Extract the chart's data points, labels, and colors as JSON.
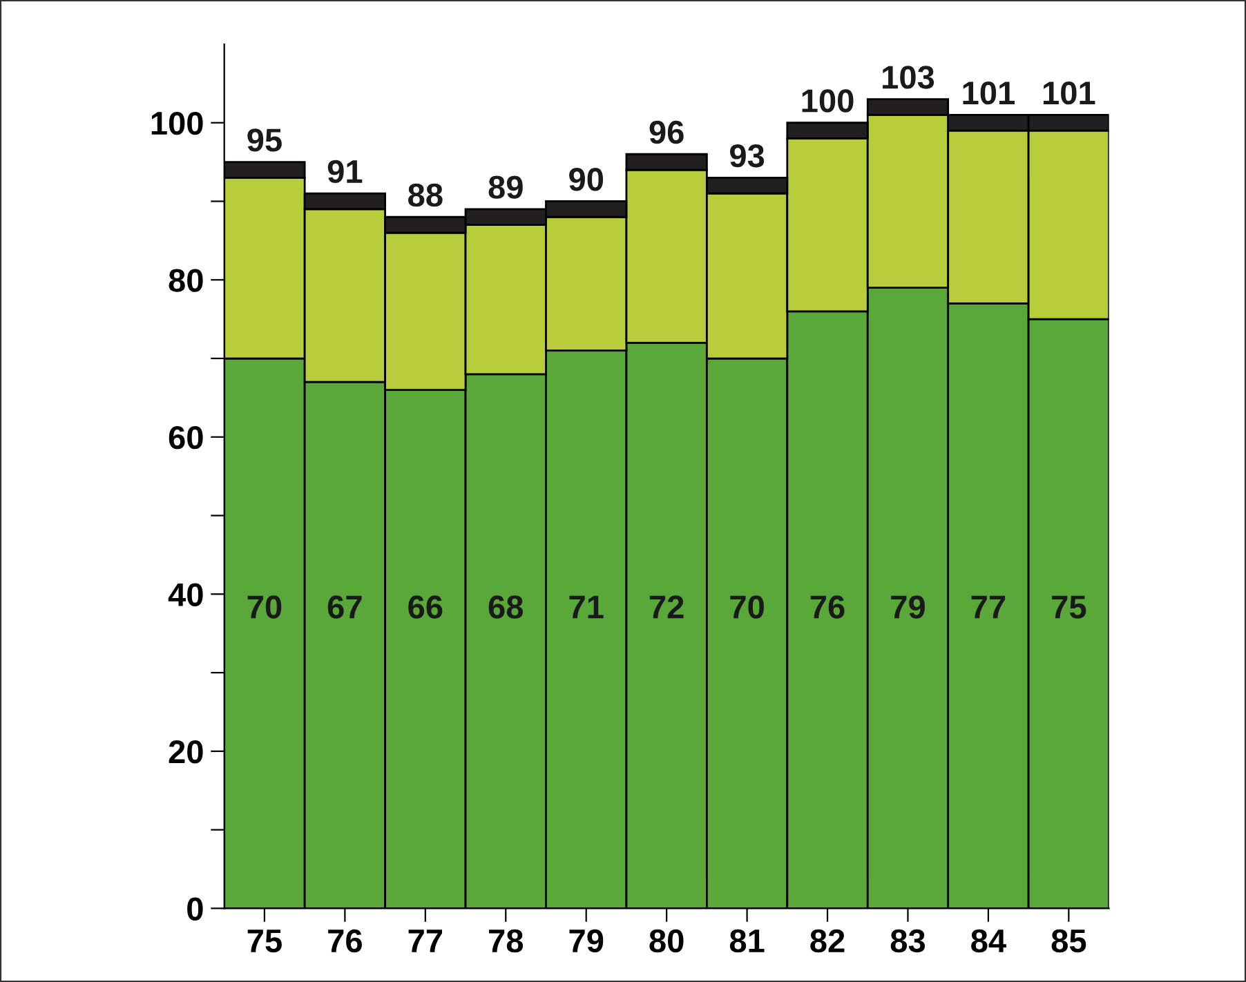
{
  "chart_data": {
    "type": "bar",
    "stacked": true,
    "categories": [
      "75",
      "76",
      "77",
      "78",
      "79",
      "80",
      "81",
      "82",
      "83",
      "84",
      "85"
    ],
    "series": [
      {
        "color": "#5aa83a",
        "values": [
          70,
          67,
          66,
          68,
          71,
          72,
          70,
          76,
          79,
          77,
          75
        ],
        "value_labels": [
          "70",
          "67",
          "66",
          "68",
          "71",
          "72",
          "70",
          "76",
          "79",
          "77",
          "75"
        ]
      },
      {
        "color": "#b8cc3c",
        "values": [
          23,
          22,
          20,
          19,
          17,
          22,
          21,
          22,
          22,
          22,
          24
        ]
      },
      {
        "color": "#231f20",
        "values": [
          2,
          2,
          2,
          2,
          2,
          2,
          2,
          2,
          2,
          2,
          2
        ]
      }
    ],
    "totals": [
      "95",
      "91",
      "88",
      "89",
      "90",
      "96",
      "93",
      "100",
      "103",
      "101",
      "101"
    ],
    "ylim": [
      0,
      110
    ],
    "yticks": [
      0,
      {
        "value": 10,
        "label": null
      },
      20,
      {
        "value": 30,
        "label": null
      },
      40,
      {
        "value": 50,
        "label": null
      },
      60,
      {
        "value": 70,
        "label": null
      },
      80,
      {
        "value": 90,
        "label": null
      },
      100
    ],
    "grid": false
  }
}
